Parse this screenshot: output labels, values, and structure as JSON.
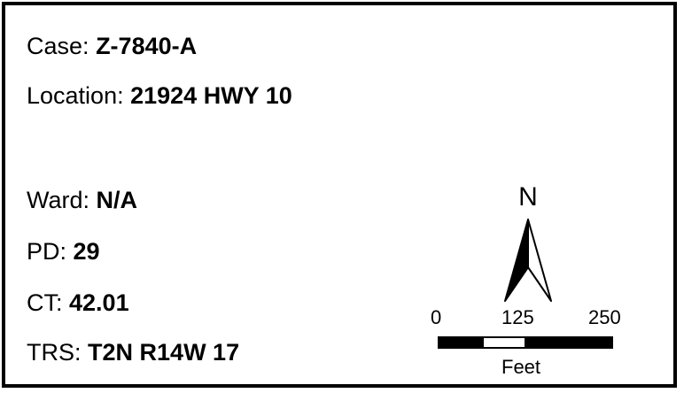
{
  "case": {
    "label": "Case:",
    "value": "Z-7840-A"
  },
  "location": {
    "label": "Location:",
    "value": "21924 HWY 10"
  },
  "ward": {
    "label": "Ward:",
    "value": "N/A"
  },
  "pd": {
    "label": "PD:",
    "value": "29"
  },
  "ct": {
    "label": "CT:",
    "value": "42.01"
  },
  "trs": {
    "label": "TRS:",
    "value": "T2N R14W 17"
  },
  "north_arrow": {
    "letter": "N",
    "icon": "north-arrow-icon"
  },
  "scale_bar": {
    "ticks": [
      "0",
      "125",
      "250"
    ],
    "units": "Feet"
  },
  "colors": {
    "ink": "#000000",
    "background": "#ffffff"
  }
}
